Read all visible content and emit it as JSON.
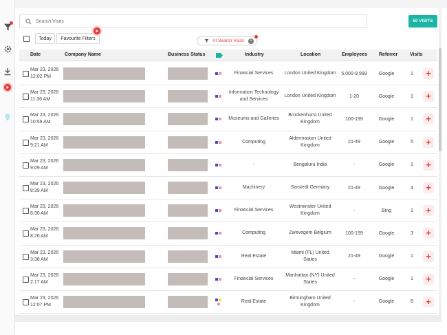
{
  "sidebar": {
    "icons": [
      "filter-icon",
      "settings-icon",
      "download-icon",
      "play-icon",
      "lightbulb-icon"
    ]
  },
  "toolbar": {
    "search_placeholder": "Search Visits",
    "visits_button": "50 VISITS",
    "today_label": "Today",
    "favourite_label": "Favourite Filters",
    "ai_search_label": "AI Search Visits"
  },
  "table": {
    "columns": {
      "date": "Date",
      "company": "Company Name",
      "business_status": "Business Status",
      "industry": "Industry",
      "location": "Location",
      "employees": "Employees",
      "referrer": "Referrer",
      "visits": "Visits"
    },
    "rows": [
      {
        "date": "Mar 23, 2026",
        "time": "12:02 PM",
        "industry": "Financial Services",
        "location": "London United Kingdom",
        "employees": "5,000-9,999",
        "referrer": "Google",
        "visits": "1"
      },
      {
        "date": "Mar 23, 2026",
        "time": "11:36 AM",
        "industry": "Information Technology and Services",
        "location": "London United Kingdom",
        "employees": "1-20",
        "referrer": "Google",
        "visits": "1"
      },
      {
        "date": "Mar 23, 2026",
        "time": "10:59 AM",
        "industry": "Museums and Galleries",
        "location": "Brockenhurst United Kingdom",
        "employees": "100-199",
        "referrer": "Google",
        "visits": "1"
      },
      {
        "date": "Mar 23, 2026",
        "time": "9:21 AM",
        "industry": "Computing",
        "location": "Aldermaston United Kingdom",
        "employees": "21-49",
        "referrer": "Google",
        "visits": "5"
      },
      {
        "date": "Mar 23, 2026",
        "time": "9:09 AM",
        "industry": "-",
        "location": "Bengaluru India",
        "employees": "-",
        "referrer": "Google",
        "visits": "1"
      },
      {
        "date": "Mar 23, 2026",
        "time": "8:39 AM",
        "industry": "Machinery",
        "location": "Sarstedt Germany",
        "employees": "21-49",
        "referrer": "Google",
        "visits": "4"
      },
      {
        "date": "Mar 23, 2026",
        "time": "8:30 AM",
        "industry": "Financial Services",
        "location": "Westminster United Kingdom",
        "employees": "-",
        "referrer": "Bing",
        "visits": "1"
      },
      {
        "date": "Mar 23, 2026",
        "time": "8:26 AM",
        "industry": "Computing",
        "location": "Zwevegem Belgium",
        "employees": "100-199",
        "referrer": "Google",
        "visits": "3"
      },
      {
        "date": "Mar 23, 2026",
        "time": "3:38 AM",
        "industry": "Real Estate",
        "location": "Miami (FL) United States",
        "employees": "21-49",
        "referrer": "Google",
        "visits": "1"
      },
      {
        "date": "Mar 23, 2026",
        "time": "2:17 AM",
        "industry": "Financial Services",
        "location": "Manhattan (NY) United States",
        "employees": "-",
        "referrer": "Google",
        "visits": "1"
      },
      {
        "date": "Mar 23, 2026",
        "time": "12:07 PM",
        "industry": "Real Estate",
        "location": "Birmingham United Kingdom",
        "employees": "-",
        "referrer": "Google",
        "visits": "8"
      }
    ]
  },
  "colors": {
    "accent_teal": "#1ab5a4",
    "accent_red": "#e53935",
    "redaction": "#c4bcb8",
    "tag_blue": "#3f51b5",
    "tag_pink": "#f48fb1",
    "tag_yellow": "#fdd835"
  }
}
